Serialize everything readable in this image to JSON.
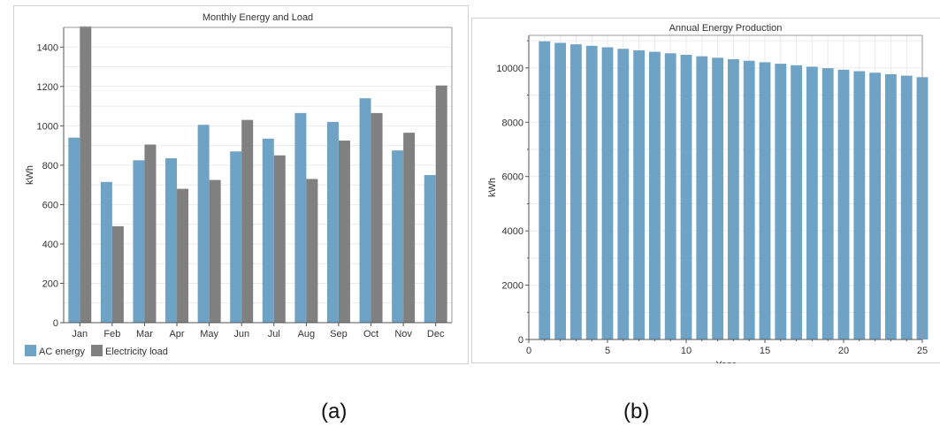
{
  "colors": {
    "ac": "#6fa3c5",
    "load": "#808080",
    "axis": "#555555",
    "grid": "#ebebeb",
    "text": "#333333",
    "border": "#d0d0d0"
  },
  "captions": {
    "a": "(a)",
    "b": "(b)"
  },
  "chart_data": [
    {
      "type": "bar",
      "title": "Monthly Energy and Load",
      "xlabel": "",
      "ylabel": "kWh",
      "ylim": [
        0,
        1500
      ],
      "yticks": [
        0,
        200,
        400,
        600,
        800,
        1000,
        1200,
        1400
      ],
      "categories": [
        "Jan",
        "Feb",
        "Mar",
        "Apr",
        "May",
        "Jun",
        "Jul",
        "Aug",
        "Sep",
        "Oct",
        "Nov",
        "Dec"
      ],
      "series": [
        {
          "name": "AC energy",
          "color": "#6fa3c5",
          "values": [
            940,
            715,
            825,
            835,
            1005,
            870,
            935,
            1065,
            1020,
            1140,
            875,
            750
          ]
        },
        {
          "name": "Electricity load",
          "color": "#808080",
          "values": [
            1505,
            490,
            905,
            680,
            725,
            1030,
            850,
            730,
            925,
            1065,
            965,
            1205
          ]
        }
      ],
      "grid": true,
      "legend": "bottom-left"
    },
    {
      "type": "bar",
      "title": "Annual Energy Production",
      "xlabel": "Year",
      "ylabel": "kWh",
      "xlim": [
        0,
        25
      ],
      "ylim": [
        0,
        11200
      ],
      "xticks": [
        0,
        5,
        10,
        15,
        20,
        25
      ],
      "yticks": [
        0,
        2000,
        4000,
        6000,
        8000,
        10000
      ],
      "x": [
        1,
        2,
        3,
        4,
        5,
        6,
        7,
        8,
        9,
        10,
        11,
        12,
        13,
        14,
        15,
        16,
        17,
        18,
        19,
        20,
        21,
        22,
        23,
        24,
        25
      ],
      "series": [
        {
          "color": "#6fa3c5",
          "values": [
            10980,
            10925,
            10870,
            10815,
            10760,
            10705,
            10650,
            10595,
            10540,
            10485,
            10430,
            10375,
            10320,
            10265,
            10210,
            10155,
            10100,
            10045,
            9990,
            9935,
            9880,
            9825,
            9770,
            9715,
            9660
          ]
        }
      ],
      "grid": true
    }
  ]
}
